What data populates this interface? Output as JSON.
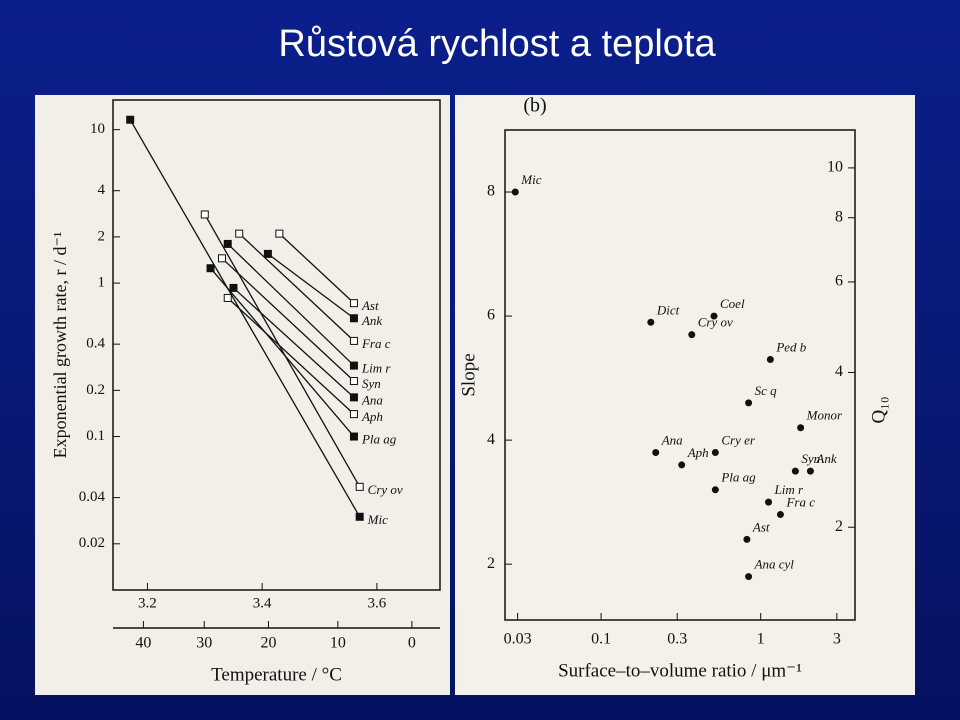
{
  "title": "Růstová rychlost a teplota",
  "chart_data": [
    {
      "type": "line",
      "ylabel": "Exponential growth rate, r / d⁻¹",
      "xlabel": "Temperature / °C",
      "xlim": [
        3.14,
        3.71
      ],
      "xticks": [
        3.2,
        3.4,
        3.6
      ],
      "x2ticks": [
        {
          "value": 3.193,
          "label": "40"
        },
        {
          "value": 3.299,
          "label": "30"
        },
        {
          "value": 3.411,
          "label": "20"
        },
        {
          "value": 3.532,
          "label": "10"
        },
        {
          "value": 3.661,
          "label": "0"
        }
      ],
      "ylim": [
        0.01,
        15.6
      ],
      "yscale": "log",
      "yticks": [
        10,
        4,
        2,
        1,
        0.4,
        0.2,
        0.1,
        0.04,
        0.02
      ],
      "color": "#111111",
      "series": [
        {
          "name": "Ast",
          "x": [
            3.43,
            3.56
          ],
          "values": [
            2.1,
            0.74
          ]
        },
        {
          "name": "Ank",
          "x": [
            3.41,
            3.56
          ],
          "values": [
            1.55,
            0.59
          ]
        },
        {
          "name": "Fra c",
          "x": [
            3.36,
            3.56
          ],
          "values": [
            2.1,
            0.42
          ]
        },
        {
          "name": "Lim r",
          "x": [
            3.34,
            3.56
          ],
          "values": [
            1.8,
            0.29
          ]
        },
        {
          "name": "Syn",
          "x": [
            3.33,
            3.56
          ],
          "values": [
            1.45,
            0.23
          ]
        },
        {
          "name": "Ana",
          "x": [
            3.35,
            3.56
          ],
          "values": [
            0.93,
            0.18
          ]
        },
        {
          "name": "Aph",
          "x": [
            3.34,
            3.56
          ],
          "values": [
            0.8,
            0.14
          ]
        },
        {
          "name": "Pla ag",
          "x": [
            3.31,
            3.56
          ],
          "values": [
            1.25,
            0.1
          ]
        },
        {
          "name": "Cry ov",
          "x": [
            3.3,
            3.57
          ],
          "values": [
            2.8,
            0.047
          ]
        },
        {
          "name": "Mic",
          "x": [
            3.17,
            3.57
          ],
          "values": [
            11.6,
            0.03
          ]
        }
      ]
    },
    {
      "type": "scatter",
      "title": "(b)",
      "xlabel": "Surface–to–volume ratio / μm⁻¹",
      "ylabel": "Slope",
      "y2label": "Q₁₀",
      "xscale": "log",
      "xlim": [
        0.025,
        3.9
      ],
      "xticks": [
        0.03,
        0.1,
        0.3,
        1,
        3
      ],
      "ylim": [
        1.1,
        9
      ],
      "yticks": [
        8,
        6,
        4,
        2
      ],
      "y2scale": "log",
      "y2lim": [
        1.32,
        11.85
      ],
      "y2ticks": [
        10,
        8,
        6,
        4,
        2
      ],
      "color": "#111111",
      "point_labels": [
        "Mic",
        "Dict",
        "Coel",
        "Cry ov",
        "Ped b",
        "Sc q",
        "Monor",
        "Ana",
        "Cry er",
        "Aph",
        "Syn",
        "Ank",
        "Pla ag",
        "Lim r",
        "Fra c",
        "Ast",
        "Ana cyl"
      ],
      "x": [
        0.029,
        0.205,
        0.51,
        0.37,
        1.15,
        0.84,
        1.78,
        0.22,
        0.52,
        0.32,
        1.65,
        2.05,
        0.52,
        1.12,
        1.33,
        0.82,
        0.84
      ],
      "values": [
        8.0,
        5.9,
        6.0,
        5.7,
        5.3,
        4.6,
        4.2,
        3.8,
        3.8,
        3.6,
        3.5,
        3.5,
        3.2,
        3.0,
        2.8,
        2.4,
        1.8
      ]
    }
  ]
}
